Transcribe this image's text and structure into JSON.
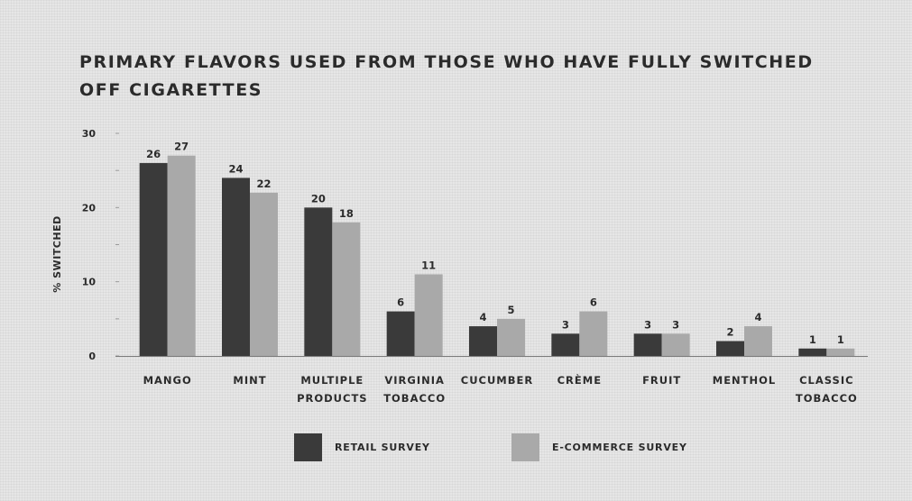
{
  "chart_data": {
    "type": "bar",
    "title_lines": [
      "PRIMARY FLAVORS USED FROM THOSE WHO HAVE FULLY SWITCHED",
      "OFF CIGARETTES"
    ],
    "ylabel": "% SWITCHED",
    "xlabel": "",
    "ylim": [
      0,
      30
    ],
    "yticks": [
      "0",
      "10",
      "20",
      "30"
    ],
    "grid": false,
    "legend_position": "bottom-center",
    "categories": [
      [
        "MANGO"
      ],
      [
        "MINT"
      ],
      [
        "MULTIPLE",
        "PRODUCTS"
      ],
      [
        "VIRGINIA",
        "TOBACCO"
      ],
      [
        "CUCUMBER"
      ],
      [
        "CRÈME"
      ],
      [
        "FRUIT"
      ],
      [
        "MENTHOL"
      ],
      [
        "CLASSIC",
        "TOBACCO"
      ]
    ],
    "series": [
      {
        "name": "RETAIL SURVEY",
        "color": "#3a3a3a",
        "values": [
          26,
          24,
          20,
          6,
          4,
          3,
          3,
          2,
          1
        ]
      },
      {
        "name": "E-COMMERCE SURVEY",
        "color": "#a9a9a9",
        "values": [
          27,
          22,
          18,
          11,
          5,
          6,
          3,
          4,
          1
        ]
      }
    ]
  }
}
